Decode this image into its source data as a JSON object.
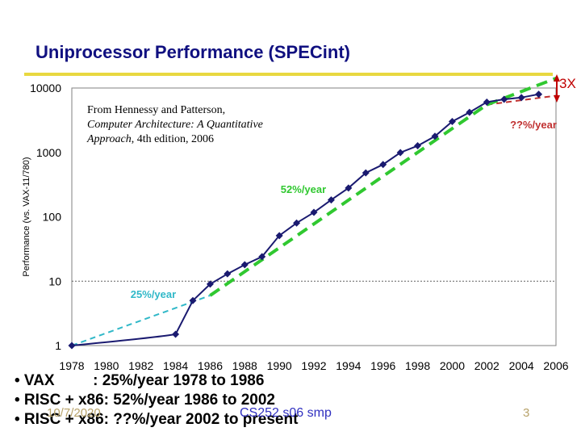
{
  "slide": {
    "title": "Uniprocessor Performance (SPECint)",
    "source_note": {
      "line1": "From Hennessy and Patterson,",
      "line2": "Computer Architecture: A Quantitative",
      "line3_italic": "Approach",
      "line3_rest": ", 4th edition, 2006"
    },
    "bullets": [
      "• VAX         : 25%/year 1978 to 1986",
      "• RISC + x86: 52%/year 1986 to 2002",
      "• RISC + x86: ??%/year 2002 to present"
    ],
    "footer": {
      "date": "10/7/2020",
      "course": "CS252 s06 smp",
      "page": "3"
    }
  },
  "chart_data": {
    "type": "line",
    "ylabel": "Performance (vs. VAX-11/780)",
    "yscale": "log",
    "ylim": [
      1,
      10000
    ],
    "xlim": [
      1978,
      2006
    ],
    "yticks": [
      "1",
      "10",
      "100",
      "1000",
      "10000"
    ],
    "xticks": [
      "1978",
      "1980",
      "1982",
      "1984",
      "1986",
      "1988",
      "1990",
      "1992",
      "1994",
      "1996",
      "1998",
      "2000",
      "2002",
      "2004",
      "2006"
    ],
    "series": [
      {
        "x": [
          1978,
          1984,
          1985,
          1986,
          1987,
          1988,
          1989,
          1990,
          1991,
          1992,
          1993,
          1994,
          1995,
          1996,
          1997,
          1998,
          1999,
          2000,
          2001,
          2002,
          2003,
          2004,
          2005
        ],
        "values": [
          1,
          1.5,
          5,
          9,
          13,
          18,
          24,
          51,
          80,
          117,
          183,
          280,
          481,
          649,
          993,
          1267,
          1779,
          3016,
          4195,
          6043,
          6681,
          7108,
          8000
        ],
        "color": "#1a1a70"
      }
    ],
    "trend_lines": [
      {
        "label": "25%/year",
        "color": "#30b8c8",
        "x": [
          1978,
          1986
        ],
        "values": [
          1,
          6
        ]
      },
      {
        "label": "52%/year",
        "color": "#30c830",
        "x": [
          1986,
          2002
        ],
        "values": [
          6,
          5500
        ]
      },
      {
        "label": "??%/year",
        "color": "#c03030",
        "x": [
          2002,
          2006
        ],
        "values": [
          5500,
          7600
        ]
      }
    ],
    "annotations": [
      {
        "text": "3X",
        "color": "#c00000"
      }
    ],
    "grid": "horizontal dashed at 10"
  }
}
